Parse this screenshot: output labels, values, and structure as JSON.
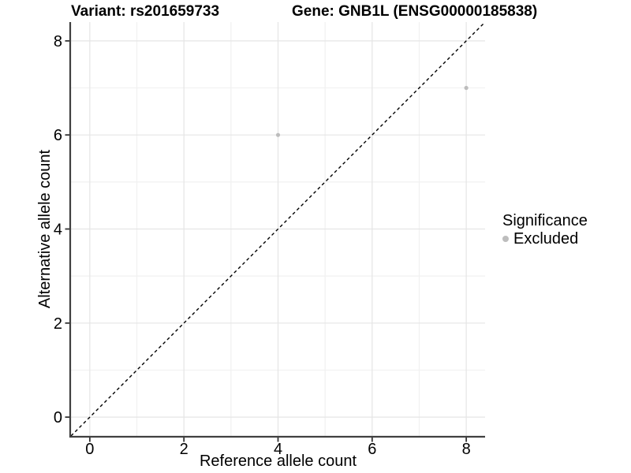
{
  "chart_data": {
    "type": "scatter",
    "title_left": "Variant: rs201659733",
    "title_right": "Gene: GNB1L (ENSG00000185838)",
    "xlabel": "Reference allele count",
    "ylabel": "Alternative allele count",
    "xlim": [
      -0.4,
      8.4
    ],
    "ylim": [
      -0.4,
      8.4
    ],
    "x_ticks": [
      0,
      2,
      4,
      6,
      8
    ],
    "y_ticks": [
      0,
      2,
      4,
      6,
      8
    ],
    "x_minor_ticks": [
      1,
      3,
      5,
      7
    ],
    "y_minor_ticks": [
      1,
      3,
      5,
      7
    ],
    "series": [
      {
        "name": "Excluded",
        "color": "#bdbdbd",
        "points": [
          {
            "x": 4,
            "y": 6
          },
          {
            "x": 8,
            "y": 7
          }
        ]
      }
    ],
    "reference_line": {
      "description": "identity line y = x",
      "from": [
        -0.4,
        -0.4
      ],
      "to": [
        8.4,
        8.4
      ],
      "style": "dashed",
      "color": "#000000"
    },
    "legend": {
      "title": "Significance",
      "position": "right",
      "entries": [
        {
          "label": "Excluded",
          "color": "#bdbdbd"
        }
      ]
    },
    "grid": {
      "major": true,
      "minor": true,
      "legend_position": "right"
    },
    "colors": {
      "background": "#ffffff",
      "grid_major": "#e5e5e5",
      "grid_minor": "#f1f1f1",
      "axis_line": "#404040",
      "tick_mark": "#333333",
      "text": "#000000",
      "point": "#bdbdbd"
    }
  }
}
